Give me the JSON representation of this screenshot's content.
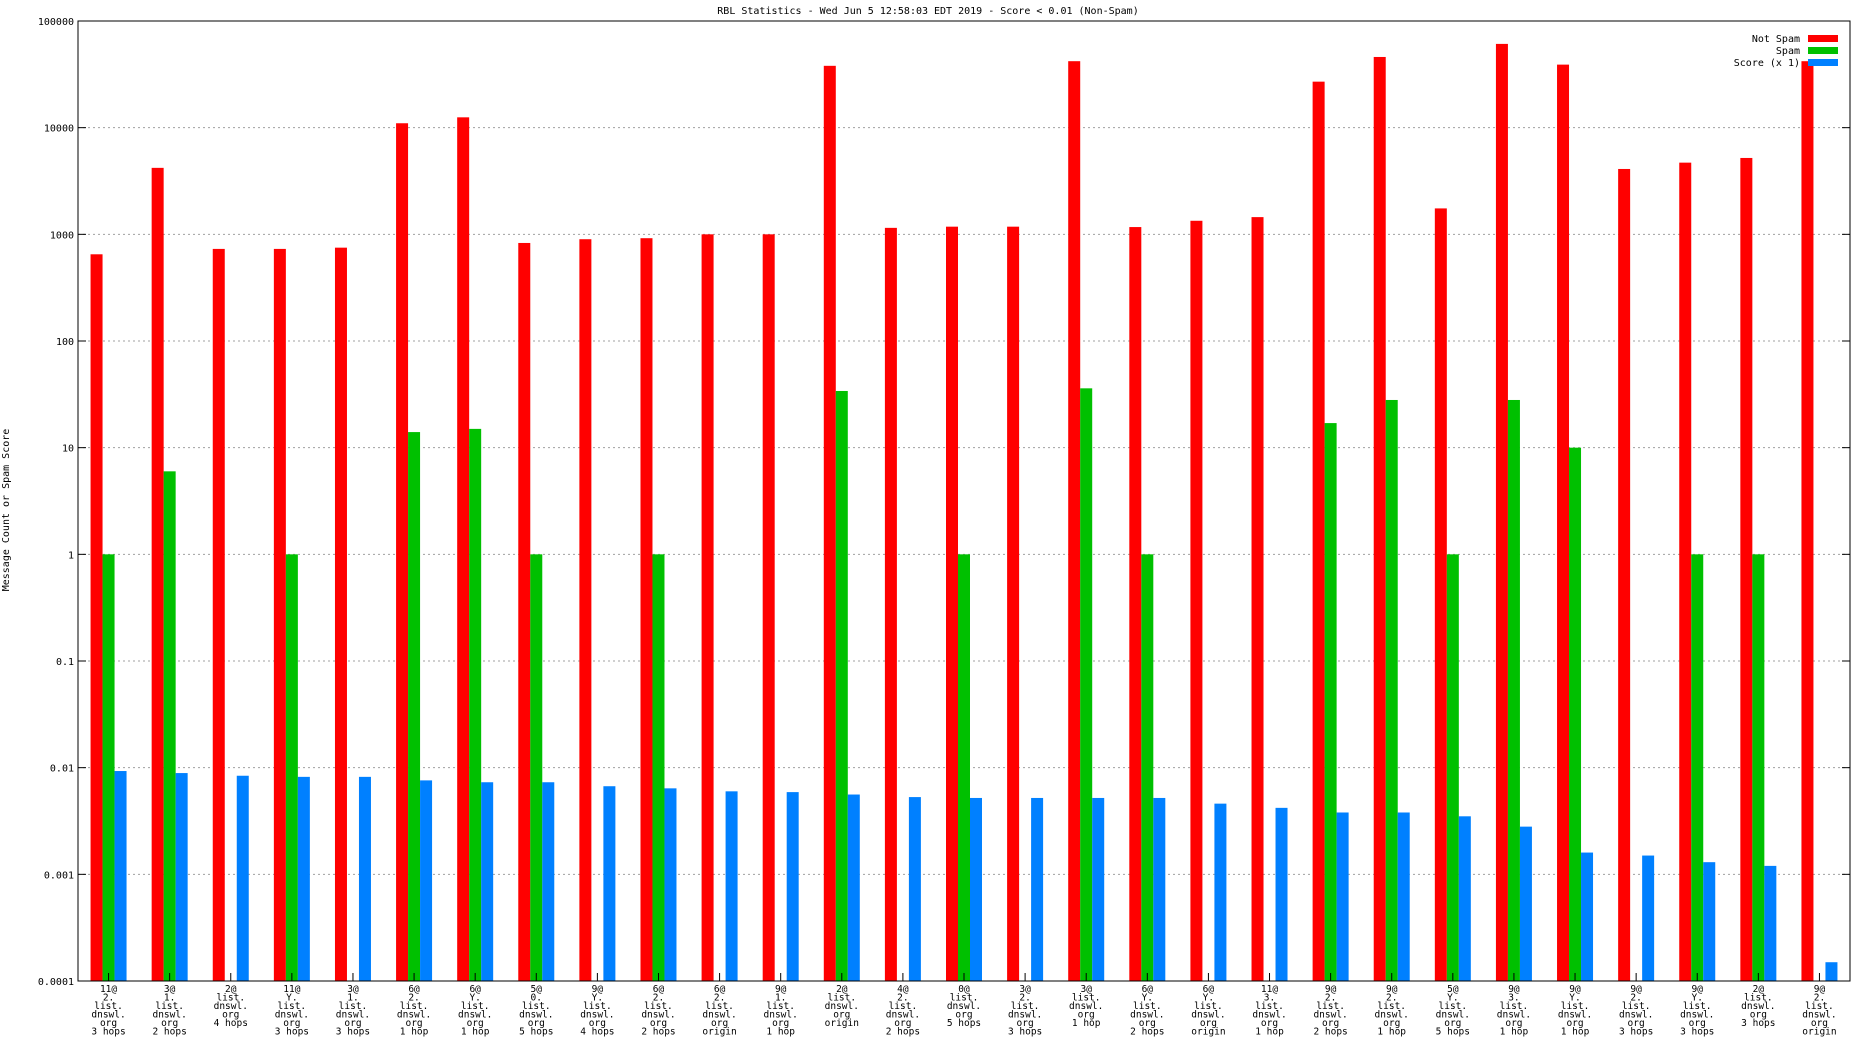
{
  "chart_data": {
    "type": "bar",
    "title": "RBL Statistics - Wed Jun  5 12:58:03 EDT 2019 - Score < 0.01 (Non-Spam)",
    "xlabel": "",
    "ylabel": "Message Count or Spam Score",
    "yscale": "log",
    "ylim": [
      0.0001,
      100000
    ],
    "yticks": [
      "0.0001",
      "0.001",
      "0.01",
      "0.1",
      "1",
      "10",
      "100",
      "1000",
      "10000",
      "100000"
    ],
    "grid": true,
    "legend": "top-right",
    "categories": [
      [
        "11@",
        "2.",
        "list.",
        "dnswl.",
        "org",
        "3 hops"
      ],
      [
        "3@",
        "1.",
        "list.",
        "dnswl.",
        "org",
        "2 hops"
      ],
      [
        "2@",
        "list.",
        "dnswl.",
        "org",
        "4 hops"
      ],
      [
        "11@",
        "Y.",
        "list.",
        "dnswl.",
        "org",
        "3 hops"
      ],
      [
        "3@",
        "1.",
        "list.",
        "dnswl.",
        "org",
        "3 hops"
      ],
      [
        "6@",
        "2.",
        "list.",
        "dnswl.",
        "org",
        "1 hop"
      ],
      [
        "6@",
        "Y.",
        "list.",
        "dnswl.",
        "org",
        "1 hop"
      ],
      [
        "5@",
        "0.",
        "list.",
        "dnswl.",
        "org",
        "5 hops"
      ],
      [
        "9@",
        "Y.",
        "list.",
        "dnswl.",
        "org",
        "4 hops"
      ],
      [
        "6@",
        "2.",
        "list.",
        "dnswl.",
        "org",
        "2 hops"
      ],
      [
        "6@",
        "2.",
        "list.",
        "dnswl.",
        "org",
        "origin"
      ],
      [
        "9@",
        "1.",
        "list.",
        "dnswl.",
        "org",
        "1 hop"
      ],
      [
        "2@",
        "list.",
        "dnswl.",
        "org",
        "origin"
      ],
      [
        "4@",
        "2.",
        "list.",
        "dnswl.",
        "org",
        "2 hops"
      ],
      [
        "0@",
        "list.",
        "dnswl.",
        "org",
        "5 hops"
      ],
      [
        "3@",
        "2.",
        "list.",
        "dnswl.",
        "org",
        "3 hops"
      ],
      [
        "3@",
        "list.",
        "dnswl.",
        "org",
        "1 hop"
      ],
      [
        "6@",
        "Y.",
        "list.",
        "dnswl.",
        "org",
        "2 hops"
      ],
      [
        "6@",
        "Y.",
        "list.",
        "dnswl.",
        "org",
        "origin"
      ],
      [
        "11@",
        "3.",
        "list.",
        "dnswl.",
        "org",
        "1 hop"
      ],
      [
        "9@",
        "2.",
        "list.",
        "dnswl.",
        "org",
        "2 hops"
      ],
      [
        "9@",
        "2.",
        "list.",
        "dnswl.",
        "org",
        "1 hop"
      ],
      [
        "5@",
        "Y.",
        "list.",
        "dnswl.",
        "org",
        "5 hops"
      ],
      [
        "9@",
        "3.",
        "list.",
        "dnswl.",
        "org",
        "1 hop"
      ],
      [
        "9@",
        "Y.",
        "list.",
        "dnswl.",
        "org",
        "1 hop"
      ],
      [
        "9@",
        "2.",
        "list.",
        "dnswl.",
        "org",
        "3 hops"
      ],
      [
        "9@",
        "Y.",
        "list.",
        "dnswl.",
        "org",
        "3 hops"
      ],
      [
        "2@",
        "list.",
        "dnswl.",
        "org",
        "3 hops"
      ],
      [
        "9@",
        "2.",
        "list.",
        "dnswl.",
        "org",
        "origin"
      ]
    ],
    "series": [
      {
        "name": "Not Spam",
        "color": "#ff0000",
        "values": [
          650,
          4200,
          730,
          730,
          750,
          11000,
          12500,
          830,
          900,
          920,
          1000,
          1000,
          38000,
          1150,
          1180,
          1180,
          42000,
          1170,
          1340,
          1450,
          27000,
          46000,
          1750,
          61000,
          39000,
          4100,
          4700,
          5200,
          42000
        ]
      },
      {
        "name": "Spam",
        "color": "#00c000",
        "values": [
          1,
          6,
          null,
          1,
          null,
          14,
          15,
          1,
          null,
          1,
          null,
          null,
          34,
          null,
          1,
          null,
          36,
          1,
          null,
          null,
          17,
          28,
          1,
          28,
          10,
          null,
          1,
          1,
          null
        ]
      },
      {
        "name": "Score (x 1)",
        "color": "#0080ff",
        "values": [
          0.0093,
          0.0089,
          0.0084,
          0.0082,
          0.0082,
          0.0076,
          0.0073,
          0.0073,
          0.0067,
          0.0064,
          0.006,
          0.0059,
          0.0056,
          0.0053,
          0.0052,
          0.0052,
          0.0052,
          0.0052,
          0.0046,
          0.0042,
          0.0038,
          0.0038,
          0.0035,
          0.0028,
          0.0016,
          0.0015,
          0.0013,
          0.0012,
          0.00015
        ]
      }
    ]
  }
}
